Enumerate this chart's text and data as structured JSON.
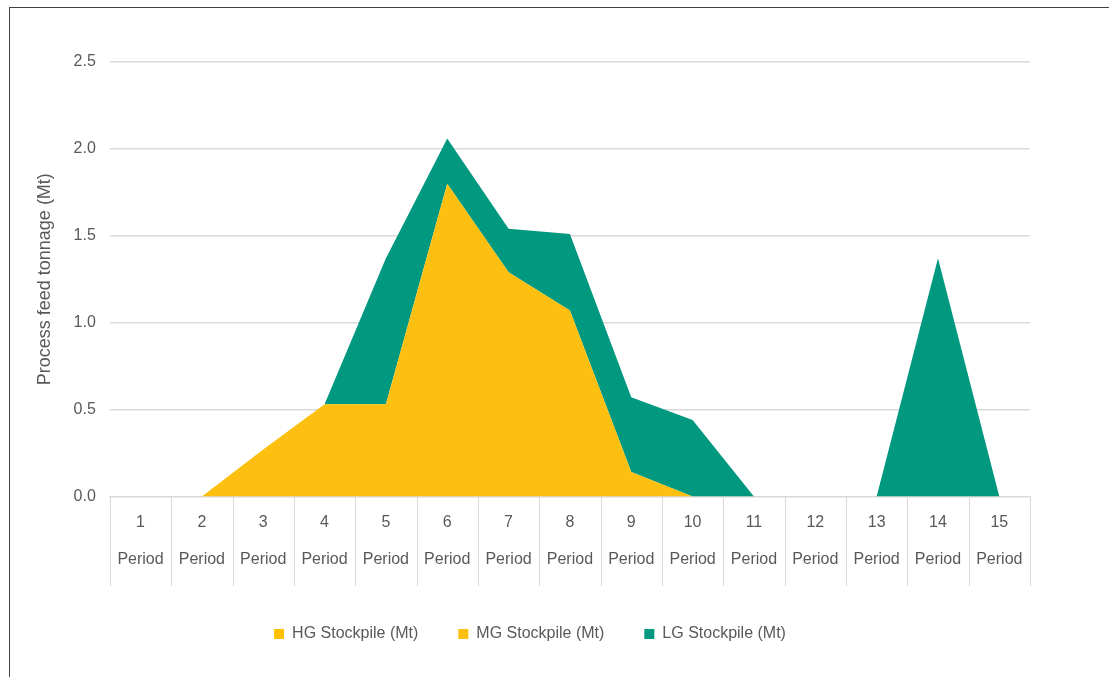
{
  "chart_data": {
    "type": "area",
    "stacked": true,
    "ylabel": "Process feed tonnage (Mt)",
    "categories": [
      "1\nPeriod",
      "2\nPeriod",
      "3\nPeriod",
      "4\nPeriod",
      "5\nPeriod",
      "6\nPeriod",
      "7\nPeriod",
      "8\nPeriod",
      "9\nPeriod",
      "10\nPeriod",
      "11\nPeriod",
      "12\nPeriod",
      "13\nPeriod",
      "14\nPeriod",
      "15\nPeriod"
    ],
    "series": [
      {
        "name": "HG Stockpile (Mt)",
        "color": "#ffc000",
        "values": [
          null,
          null,
          null,
          null,
          null,
          null,
          null,
          null,
          null,
          null,
          null,
          null,
          null,
          null,
          null
        ]
      },
      {
        "name": "MG Stockpile (Mt)",
        "color": "#fdbf10",
        "values": [
          0,
          0,
          0.27,
          0.53,
          0.53,
          1.8,
          1.29,
          1.07,
          0.14,
          0,
          0,
          0,
          0,
          0,
          0
        ]
      },
      {
        "name": "LG Stockpile (Mt)",
        "color": "#009980",
        "values": [
          0,
          0,
          0,
          0,
          0.84,
          0.26,
          0.25,
          0.44,
          0.43,
          0.44,
          0,
          0,
          0,
          1.37,
          0
        ]
      }
    ],
    "ylim": [
      0,
      2.5
    ],
    "yticks": [
      {
        "value": 0,
        "label": "0.0"
      },
      0.5,
      {
        "value": 1,
        "label": "1.0"
      },
      1.5,
      {
        "value": 2,
        "label": "2.0"
      },
      2.5
    ],
    "grid": "y",
    "legend": "bottom"
  }
}
